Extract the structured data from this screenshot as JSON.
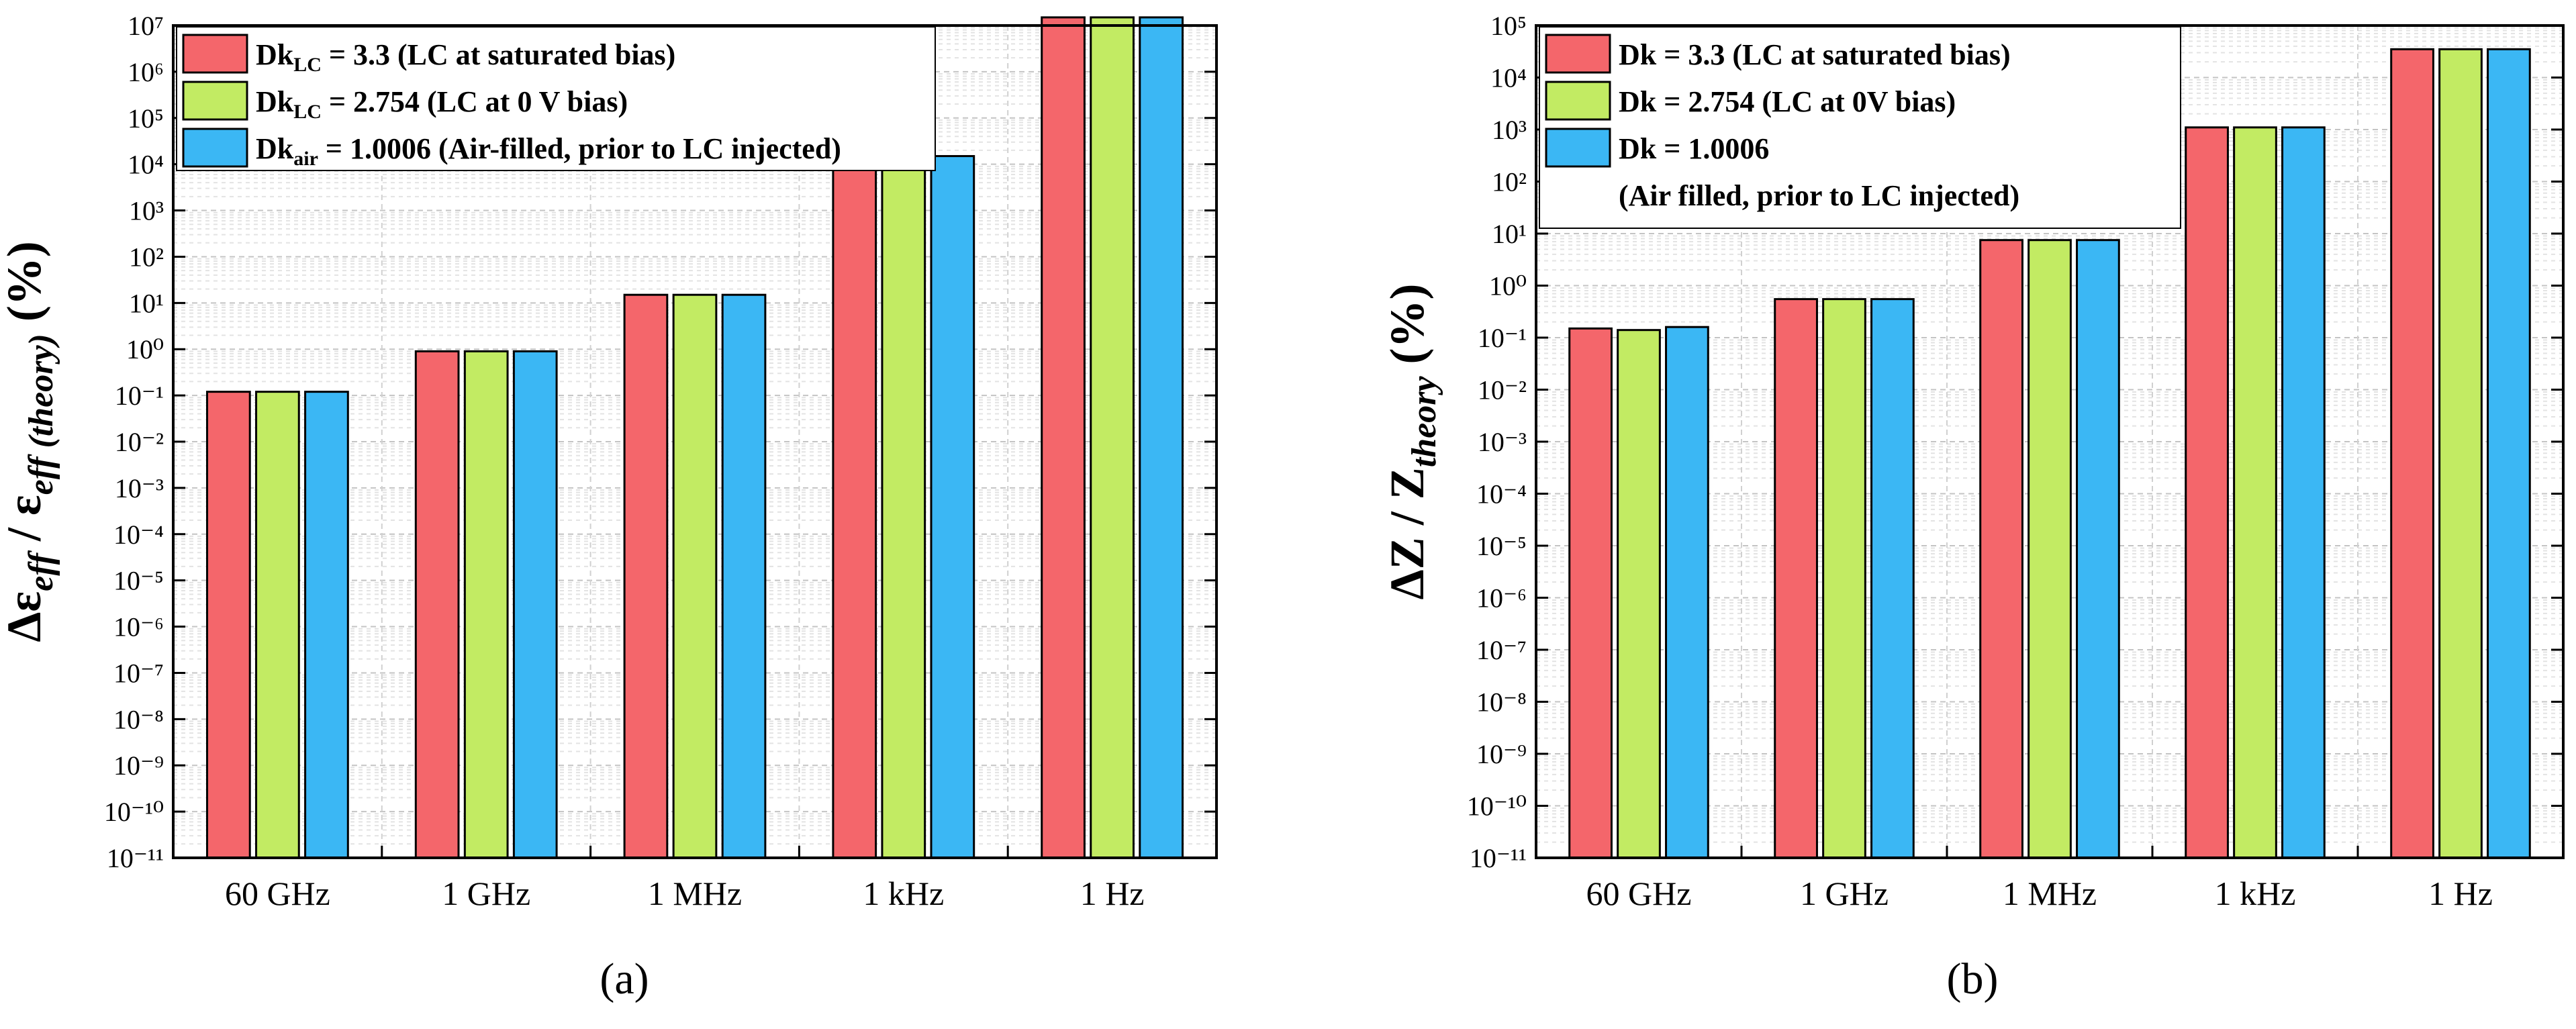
{
  "figure": {
    "caption_a": "(a)",
    "caption_b": "(b)"
  },
  "chart_data": [
    {
      "type": "bar",
      "panel": "a",
      "title": "",
      "xlabel": "",
      "ylabel": "Δε_eff / ε_eff(theory) (%)",
      "ylabel_parts": {
        "delta": "Δε",
        "sub1": "eff",
        "slash": " / ε",
        "sub2": "eff (theory)",
        "units": "(%)"
      },
      "yscale": "log",
      "ylim": [
        1e-11,
        10000000.0
      ],
      "grid": true,
      "legend_position": "top-left",
      "categories": [
        "60 GHz",
        "1 GHz",
        "1 MHz",
        "1 kHz",
        "1 Hz"
      ],
      "series": [
        {
          "name": "Dk_LC = 3.3 (LC at saturated bias)",
          "label_main": "Dk",
          "label_sub": "LC",
          "label_rest": " = 3.3 (LC at saturated bias)",
          "color": "#f4666b",
          "values": [
            0.12,
            0.9,
            15,
            15000,
            15000000
          ]
        },
        {
          "name": "Dk_LC = 2.754 (LC at 0 V bias)",
          "label_main": "Dk",
          "label_sub": "LC",
          "label_rest": " = 2.754 (LC at 0 V bias)",
          "color": "#c2eb63",
          "values": [
            0.12,
            0.9,
            15,
            15000,
            15000000
          ]
        },
        {
          "name": "Dk_air = 1.0006 (Air-filled, prior to LC injected)",
          "label_main": "Dk",
          "label_sub": "air",
          "label_rest": " = 1.0006 (Air-filled, prior to LC injected)",
          "color": "#3bb7f4",
          "values": [
            0.12,
            0.9,
            15,
            15000,
            15000000
          ]
        }
      ]
    },
    {
      "type": "bar",
      "panel": "b",
      "title": "",
      "xlabel": "",
      "ylabel": "ΔZ / Z_theory (%)",
      "ylabel_parts": {
        "main": "ΔZ / Z",
        "sub": "theory",
        "units": "(%)"
      },
      "yscale": "log",
      "ylim": [
        1e-11,
        100000.0
      ],
      "grid": true,
      "legend_position": "top-left",
      "categories": [
        "60 GHz",
        "1 GHz",
        "1 MHz",
        "1 kHz",
        "1 Hz"
      ],
      "series": [
        {
          "name": "Dk = 3.3 (LC at saturated bias)",
          "label_lines": [
            "Dk = 3.3 (LC at saturated bias)"
          ],
          "color": "#f4666b",
          "values": [
            0.15,
            0.55,
            7.5,
            1100,
            35000
          ]
        },
        {
          "name": "Dk = 2.754 (LC at 0V bias)",
          "label_lines": [
            "Dk = 2.754 (LC at 0V bias)"
          ],
          "color": "#c2eb63",
          "values": [
            0.14,
            0.55,
            7.5,
            1100,
            35000
          ]
        },
        {
          "name": "Dk = 1.0006 (Air filled, prior to LC injected)",
          "label_lines": [
            "Dk = 1.0006",
            "(Air filled, prior to LC injected)"
          ],
          "color": "#3bb7f4",
          "values": [
            0.16,
            0.55,
            7.5,
            1100,
            35000
          ]
        }
      ]
    }
  ]
}
